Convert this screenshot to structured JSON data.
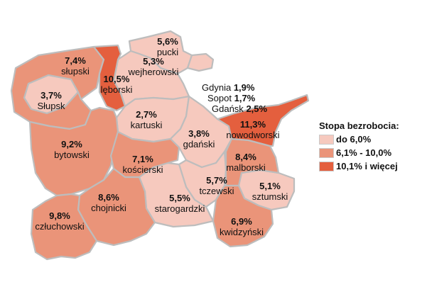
{
  "colors": {
    "low": "#f6c9be",
    "mid": "#ea9479",
    "high": "#e45f3e",
    "border": "#bdbdbd"
  },
  "regions": {
    "pucki": {
      "value": "5,6%",
      "name": "pucki"
    },
    "wejherowski": {
      "value": "5,3%",
      "name": "wejherowski"
    },
    "slupski": {
      "value": "7,4%",
      "name": "słupski"
    },
    "leborski": {
      "value": "10,5%",
      "name": "lęborski"
    },
    "slupsk": {
      "value": "3,7%",
      "name": "Słupsk"
    },
    "kartuski": {
      "value": "2,7%",
      "name": "kartuski"
    },
    "gdanski": {
      "value": "3,8%",
      "name": "gdański"
    },
    "nowodworski": {
      "value": "11,3%",
      "name": "nowodworski"
    },
    "bytowski": {
      "value": "9,2%",
      "name": "bytowski"
    },
    "koscierski": {
      "value": "7,1%",
      "name": "kościerski"
    },
    "malborski": {
      "value": "8,4%",
      "name": "malborski"
    },
    "tczewski": {
      "value": "5,7%",
      "name": "tczewski"
    },
    "sztumski": {
      "value": "5,1%",
      "name": "sztumski"
    },
    "chojnicki": {
      "value": "8,6%",
      "name": "chojnicki"
    },
    "starogardzki": {
      "value": "5,5%",
      "name": "starogardzki"
    },
    "czluchowski": {
      "value": "9,8%",
      "name": "człuchowski"
    },
    "kwidzynski": {
      "value": "6,9%",
      "name": "kwidzyński"
    }
  },
  "cities": {
    "gdynia": {
      "name": "Gdynia",
      "value": "1,9%"
    },
    "sopot": {
      "name": "Sopot",
      "value": "1,7%"
    },
    "gdansk": {
      "name": "Gdańsk",
      "value": "2,5%"
    }
  },
  "legend": {
    "title": "Stopa bezrobocia:",
    "items": [
      {
        "label": "do 6,0%",
        "color": "#f6c9be"
      },
      {
        "label": "6,1% - 10,0%",
        "color": "#ea9479"
      },
      {
        "label": "10,1% i więcej",
        "color": "#e45f3e"
      }
    ]
  }
}
